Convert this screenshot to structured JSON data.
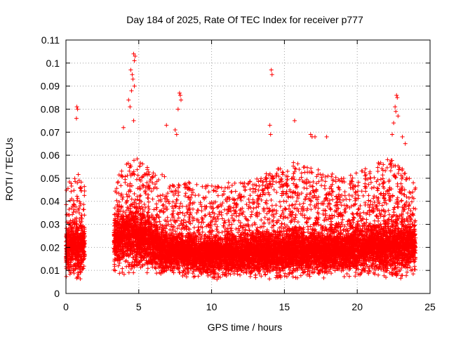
{
  "chart_data": {
    "type": "scatter",
    "title": "Day 184 of 2025, Rate Of TEC Index for receiver p777",
    "xlabel": "GPS time / hours",
    "ylabel": "ROTI / TECUs",
    "xlim": [
      0,
      25
    ],
    "ylim": [
      0,
      0.11
    ],
    "grid": true,
    "marker": "plus",
    "point_color": "#ff0000",
    "x_ticks": [
      0,
      5,
      10,
      15,
      20,
      25
    ],
    "x_tick_labels": [
      "0",
      "5",
      "10",
      "15",
      "20",
      "25"
    ],
    "y_ticks": [
      0,
      0.01,
      0.02,
      0.03,
      0.04,
      0.05,
      0.06,
      0.07,
      0.08,
      0.09,
      0.1,
      0.11
    ],
    "y_tick_labels": [
      "0",
      "0.01",
      "0.02",
      "0.03",
      "0.04",
      "0.05",
      "0.06",
      "0.07",
      "0.08",
      "0.09",
      "0.1",
      "0.11"
    ],
    "data_coverage": [
      {
        "start_hour": 0.0,
        "end_hour": 1.3
      },
      {
        "start_hour": 3.3,
        "end_hour": 24.0
      }
    ],
    "envelope": [
      {
        "hour": 0.0,
        "low": 0.006,
        "median": 0.018,
        "high": 0.047
      },
      {
        "hour": 1.0,
        "low": 0.005,
        "median": 0.02,
        "high": 0.053
      },
      {
        "hour": 3.3,
        "low": 0.007,
        "median": 0.022,
        "high": 0.05
      },
      {
        "hour": 4.5,
        "low": 0.008,
        "median": 0.025,
        "high": 0.06
      },
      {
        "hour": 7.0,
        "low": 0.007,
        "median": 0.018,
        "high": 0.05
      },
      {
        "hour": 10.0,
        "low": 0.006,
        "median": 0.016,
        "high": 0.047
      },
      {
        "hour": 13.0,
        "low": 0.006,
        "median": 0.017,
        "high": 0.05
      },
      {
        "hour": 16.0,
        "low": 0.006,
        "median": 0.018,
        "high": 0.058
      },
      {
        "hour": 19.0,
        "low": 0.007,
        "median": 0.018,
        "high": 0.05
      },
      {
        "hour": 22.5,
        "low": 0.005,
        "median": 0.02,
        "high": 0.06
      },
      {
        "hour": 24.0,
        "low": 0.007,
        "median": 0.02,
        "high": 0.047
      }
    ],
    "notable_points": [
      {
        "x": 0.75,
        "y": 0.081
      },
      {
        "x": 0.8,
        "y": 0.08
      },
      {
        "x": 0.72,
        "y": 0.076
      },
      {
        "x": 4.65,
        "y": 0.104
      },
      {
        "x": 4.75,
        "y": 0.103
      },
      {
        "x": 4.7,
        "y": 0.101
      },
      {
        "x": 4.45,
        "y": 0.097
      },
      {
        "x": 4.55,
        "y": 0.095
      },
      {
        "x": 4.6,
        "y": 0.093
      },
      {
        "x": 4.7,
        "y": 0.09
      },
      {
        "x": 4.5,
        "y": 0.088
      },
      {
        "x": 4.3,
        "y": 0.084
      },
      {
        "x": 4.4,
        "y": 0.081
      },
      {
        "x": 4.65,
        "y": 0.075
      },
      {
        "x": 3.95,
        "y": 0.072
      },
      {
        "x": 7.8,
        "y": 0.087
      },
      {
        "x": 7.85,
        "y": 0.086
      },
      {
        "x": 7.9,
        "y": 0.084
      },
      {
        "x": 7.7,
        "y": 0.08
      },
      {
        "x": 6.9,
        "y": 0.073
      },
      {
        "x": 7.5,
        "y": 0.071
      },
      {
        "x": 7.6,
        "y": 0.069
      },
      {
        "x": 14.1,
        "y": 0.097
      },
      {
        "x": 14.15,
        "y": 0.095
      },
      {
        "x": 14.0,
        "y": 0.073
      },
      {
        "x": 14.05,
        "y": 0.069
      },
      {
        "x": 15.7,
        "y": 0.075
      },
      {
        "x": 16.8,
        "y": 0.069
      },
      {
        "x": 16.9,
        "y": 0.068
      },
      {
        "x": 17.1,
        "y": 0.068
      },
      {
        "x": 17.9,
        "y": 0.068
      },
      {
        "x": 22.7,
        "y": 0.086
      },
      {
        "x": 22.75,
        "y": 0.085
      },
      {
        "x": 22.6,
        "y": 0.081
      },
      {
        "x": 22.65,
        "y": 0.079
      },
      {
        "x": 22.8,
        "y": 0.077
      },
      {
        "x": 22.5,
        "y": 0.074
      },
      {
        "x": 22.4,
        "y": 0.069
      },
      {
        "x": 23.1,
        "y": 0.068
      },
      {
        "x": 23.3,
        "y": 0.065
      }
    ]
  }
}
